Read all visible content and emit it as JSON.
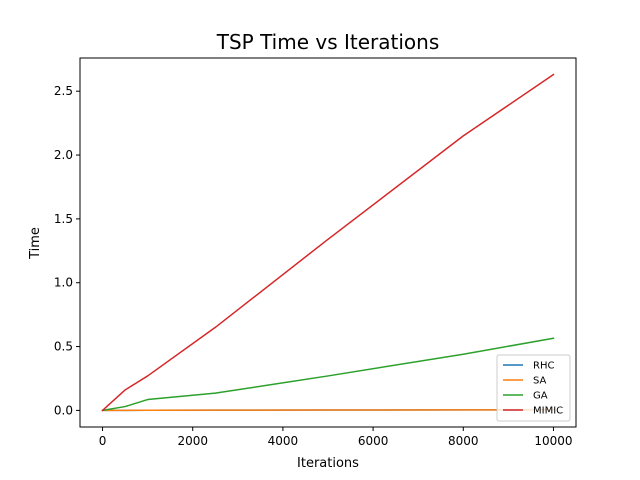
{
  "chart_data": {
    "type": "line",
    "title": "TSP Time vs Iterations",
    "xlabel": "Iterations",
    "ylabel": "Time",
    "xlim": [
      -500,
      10500
    ],
    "ylim": [
      -0.13,
      2.76
    ],
    "xticks": [
      0,
      2000,
      4000,
      6000,
      8000,
      10000
    ],
    "xtick_labels": [
      "0",
      "2000",
      "4000",
      "6000",
      "8000",
      "10000"
    ],
    "yticks": [
      0.0,
      0.5,
      1.0,
      1.5,
      2.0,
      2.5
    ],
    "ytick_labels": [
      "0.0",
      "0.5",
      "1.0",
      "1.5",
      "2.0",
      "2.5"
    ],
    "grid": false,
    "legend_position": "bottom-right",
    "x": [
      0,
      500,
      1000,
      2500,
      5000,
      8000,
      10000
    ],
    "series": [
      {
        "name": "RHC",
        "color": "#1f77b4",
        "values": [
          0,
          0.0005,
          0.001,
          0.002,
          0.003,
          0.004,
          0.005
        ]
      },
      {
        "name": "SA",
        "color": "#ff7f0e",
        "values": [
          0,
          0.0005,
          0.001,
          0.002,
          0.003,
          0.004,
          0.005
        ]
      },
      {
        "name": "GA",
        "color": "#2ca02c",
        "values": [
          0,
          0.03,
          0.085,
          0.135,
          0.27,
          0.44,
          0.565
        ]
      },
      {
        "name": "MIMIC",
        "color": "#d62728",
        "values": [
          0,
          0.16,
          0.27,
          0.65,
          1.34,
          2.15,
          2.63
        ]
      }
    ]
  }
}
